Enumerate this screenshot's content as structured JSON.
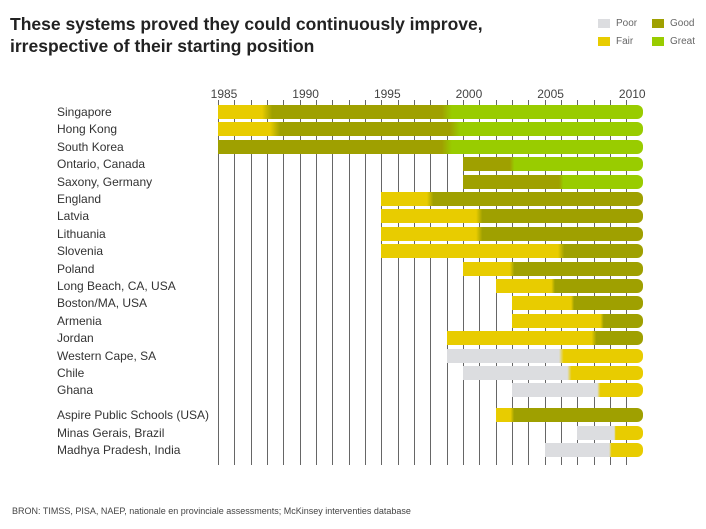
{
  "title": "These systems proved they could continuously improve, irrespective of their starting position",
  "legend": [
    {
      "label": "Poor",
      "color": "#dcdde0"
    },
    {
      "label": "Good",
      "color": "#9fa000"
    },
    {
      "label": "Fair",
      "color": "#e8cc00"
    },
    {
      "label": "Great",
      "color": "#99cc00"
    }
  ],
  "footer": "BRON: TIMSS, PISA, NAEP, nationale en provinciale assessments; McKinsey interventies database",
  "chart_data": {
    "type": "bar",
    "orientation": "horizontal-timeline",
    "xlim": [
      1985,
      2011
    ],
    "x_ticks": [
      "1985",
      "1990",
      "1995",
      "2000",
      "2005",
      "2010"
    ],
    "grid": "vertical, yearly",
    "colors": {
      "Poor": "#dcdde0",
      "Fair": "#e8cc00",
      "Good": "#9fa000",
      "Great": "#99cc00"
    },
    "rows": [
      {
        "name": "Singapore",
        "segments": [
          [
            "Fair",
            1985,
            1988
          ],
          [
            "Good",
            1988,
            1999
          ],
          [
            "Great",
            1999,
            2011
          ]
        ]
      },
      {
        "name": "Hong Kong",
        "segments": [
          [
            "Fair",
            1985,
            1988.5
          ],
          [
            "Good",
            1988.5,
            1999.5
          ],
          [
            "Great",
            1999.5,
            2011
          ]
        ]
      },
      {
        "name": "South Korea",
        "segments": [
          [
            "Good",
            1985,
            1999
          ],
          [
            "Great",
            1999,
            2011
          ]
        ]
      },
      {
        "name": "Ontario, Canada",
        "segments": [
          [
            "Good",
            2000,
            2003
          ],
          [
            "Great",
            2003,
            2011
          ]
        ]
      },
      {
        "name": "Saxony, Germany",
        "segments": [
          [
            "Good",
            2000,
            2006
          ],
          [
            "Great",
            2006,
            2011
          ]
        ]
      },
      {
        "name": "England",
        "segments": [
          [
            "Fair",
            1995,
            1998
          ],
          [
            "Good",
            1998,
            2011
          ]
        ]
      },
      {
        "name": "Latvia",
        "segments": [
          [
            "Fair",
            1995,
            2001
          ],
          [
            "Good",
            2001,
            2011
          ]
        ]
      },
      {
        "name": "Lithuania",
        "segments": [
          [
            "Fair",
            1995,
            2001
          ],
          [
            "Good",
            2001,
            2011
          ]
        ]
      },
      {
        "name": "Slovenia",
        "segments": [
          [
            "Fair",
            1995,
            2006
          ],
          [
            "Good",
            2006,
            2011
          ]
        ]
      },
      {
        "name": "Poland",
        "segments": [
          [
            "Fair",
            2000,
            2003
          ],
          [
            "Good",
            2003,
            2011
          ]
        ]
      },
      {
        "name": "Long Beach, CA, USA",
        "segments": [
          [
            "Fair",
            2002,
            2005.5
          ],
          [
            "Good",
            2005.5,
            2011
          ]
        ]
      },
      {
        "name": "Boston/MA, USA",
        "segments": [
          [
            "Fair",
            2003,
            2006.7
          ],
          [
            "Good",
            2006.7,
            2011
          ]
        ]
      },
      {
        "name": "Armenia",
        "segments": [
          [
            "Fair",
            2003,
            2008.5
          ],
          [
            "Good",
            2008.5,
            2011
          ]
        ]
      },
      {
        "name": "Jordan",
        "segments": [
          [
            "Fair",
            1999,
            2008
          ],
          [
            "Good",
            2008,
            2011
          ]
        ]
      },
      {
        "name": "Western Cape, SA",
        "segments": [
          [
            "Poor",
            1999,
            2006
          ],
          [
            "Fair",
            2006,
            2011
          ]
        ]
      },
      {
        "name": "Chile",
        "segments": [
          [
            "Poor",
            2000,
            2006.5
          ],
          [
            "Fair",
            2006.5,
            2011
          ]
        ]
      },
      {
        "name": "Ghana",
        "segments": [
          [
            "Poor",
            2003,
            2008.3
          ],
          [
            "Fair",
            2008.3,
            2011
          ]
        ]
      },
      {
        "name": "Aspire Public Schools (USA)",
        "group": 2,
        "segments": [
          [
            "Fair",
            2002,
            2003
          ],
          [
            "Good",
            2003,
            2011
          ]
        ]
      },
      {
        "name": "Minas Gerais, Brazil",
        "group": 2,
        "segments": [
          [
            "Poor",
            2007,
            2009.3
          ],
          [
            "Fair",
            2009.3,
            2011
          ]
        ]
      },
      {
        "name": "Madhya Pradesh, India",
        "group": 2,
        "segments": [
          [
            "Poor",
            2005,
            2009
          ],
          [
            "Fair",
            2009,
            2011
          ]
        ]
      }
    ]
  }
}
